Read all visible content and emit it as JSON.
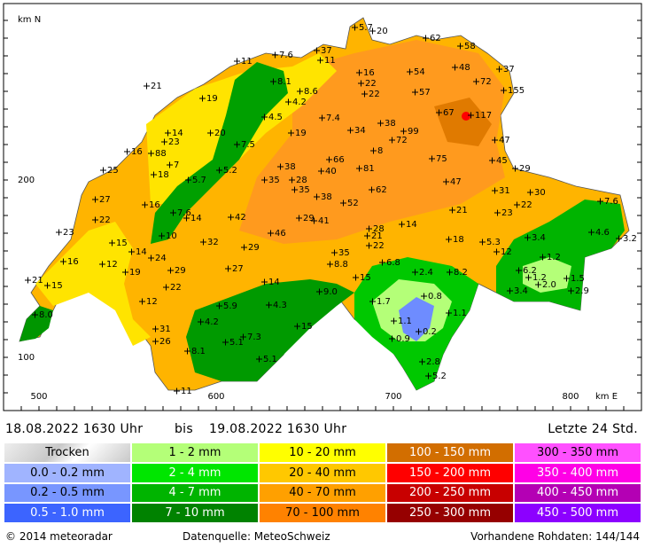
{
  "map": {
    "y_unit": "km N",
    "x_unit": "km E",
    "y_labels": [
      "200",
      "100"
    ],
    "x_labels": [
      "500",
      "600",
      "700",
      "800"
    ],
    "stations": [
      "5.7",
      "20",
      "62",
      "58",
      "37",
      "11",
      "7.6",
      "11",
      "16",
      "54",
      "48",
      "37",
      "21",
      "22",
      "72",
      "155",
      "8.1",
      "8.6",
      "19",
      "22",
      "57",
      "4.2",
      "4.5",
      "7.4",
      "67",
      "117",
      "38",
      "34",
      "99",
      "20",
      "19",
      "14",
      "7.5",
      "72",
      "23",
      "47",
      "16",
      "8",
      "88",
      "66",
      "75",
      "7",
      "38",
      "40",
      "81",
      "45",
      "29",
      "25",
      "5.2",
      "18",
      "5.7",
      "35",
      "28",
      "47",
      "62",
      "31",
      "30",
      "35",
      "38",
      "27",
      "22",
      "7.6",
      "52",
      "16",
      "23",
      "21",
      "7.6",
      "14",
      "42",
      "29",
      "41",
      "22",
      "28",
      "14",
      "4.6",
      "3.2",
      "23",
      "46",
      "10",
      "32",
      "21",
      "18",
      "5.3",
      "3.4",
      "15",
      "29",
      "22",
      "35",
      "14",
      "12",
      "16",
      "24",
      "8.8",
      "6.8",
      "12",
      "1.2",
      "19",
      "29",
      "27",
      "2.4",
      "8.2",
      "6.2",
      "1.2",
      "15",
      "21",
      "15",
      "14",
      "22",
      "1.5",
      "2.0",
      "3.4",
      "2.9",
      "9.0",
      "1.7",
      "0.8",
      "12",
      "5.9",
      "4.3",
      "1.1",
      "8.0",
      "4.2",
      "15",
      "1.1",
      "31",
      "0.2",
      "0.9",
      "5.1",
      "7.3",
      "26",
      "8.1",
      "5.1",
      "2.8",
      "5.2",
      "11"
    ]
  },
  "header": {
    "period_from": "18.08.2022 1630 Uhr",
    "period_sep": "bis",
    "period_to": "19.08.2022 1630 Uhr",
    "span": "Letzte 24 Std."
  },
  "legend": [
    {
      "label": "Trocken",
      "color": "#c8c8c8"
    },
    {
      "label": "0.0 - 0.2 mm",
      "color": "#a0b4ff"
    },
    {
      "label": "0.2 - 0.5 mm",
      "color": "#7896ff"
    },
    {
      "label": "0.5 - 1.0 mm",
      "color": "#3c64ff"
    },
    {
      "label": "1 - 2 mm",
      "color": "#b4ff78"
    },
    {
      "label": "2 - 4 mm",
      "color": "#00e600"
    },
    {
      "label": "4 - 7 mm",
      "color": "#00b400"
    },
    {
      "label": "7 - 10 mm",
      "color": "#008200"
    },
    {
      "label": "10 - 20 mm",
      "color": "#ffff00"
    },
    {
      "label": "20 - 40 mm",
      "color": "#ffc800"
    },
    {
      "label": "40 - 70 mm",
      "color": "#ffa000"
    },
    {
      "label": "70 - 100 mm",
      "color": "#ff8200"
    },
    {
      "label": "100 - 150 mm",
      "color": "#d26e00"
    },
    {
      "label": "150 - 200 mm",
      "color": "#ff0000"
    },
    {
      "label": "200 - 250 mm",
      "color": "#c80000"
    },
    {
      "label": "250 - 300 mm",
      "color": "#960000"
    },
    {
      "label": "300 - 350 mm",
      "color": "#ff50ff"
    },
    {
      "label": "350 - 400 mm",
      "color": "#ff00e6"
    },
    {
      "label": "400 - 450 mm",
      "color": "#b400b4"
    },
    {
      "label": "450 - 500 mm",
      "color": "#8c00ff"
    }
  ],
  "footer": {
    "copyright": "© 2014 meteoradar",
    "source": "Datenquelle: MeteoSchweiz",
    "raw": "Vorhandene Rohdaten: 144/144"
  }
}
